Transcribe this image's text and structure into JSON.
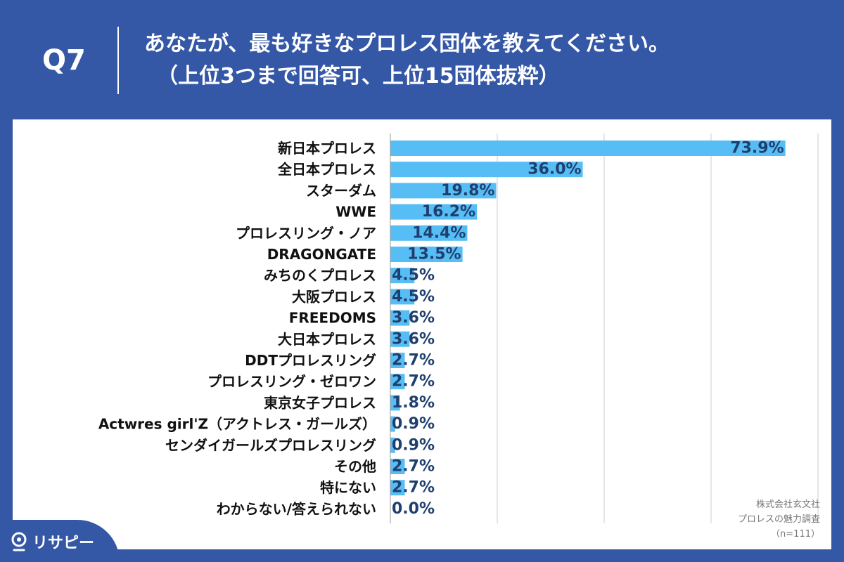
{
  "header": {
    "qnum": "Q7",
    "title_line1": "あなたが、最も好きなプロレス団体を教えてください。",
    "title_line2": "（上位3つまで回答可、上位15団体抜粋）"
  },
  "credit": {
    "line1": "株式会社玄文社",
    "line2": "プロレスの魅力調査",
    "line3": "（n=111）"
  },
  "brand": {
    "name": "リサピー",
    "icon": "pin-icon"
  },
  "colors": {
    "background": "#3457a6",
    "bar": "#56bdf5",
    "label": "#1f3f6e",
    "text": "#111111",
    "grid": "#cccccc"
  },
  "chart_data": {
    "type": "bar",
    "orientation": "horizontal",
    "categories": [
      "新日本プロレス",
      "全日本プロレス",
      "スターダム",
      "WWE",
      "プロレスリング・ノア",
      "DRAGONGATE",
      "みちのくプロレス",
      "大阪プロレス",
      "FREEDOMS",
      "大日本プロレス",
      "DDTプロレスリング",
      "プロレスリング・ゼロワン",
      "東京女子プロレス",
      "Actwres girl'Z（アクトレス・ガールズ）",
      "センダイガールズプロレスリング",
      "その他",
      "特にない",
      "わからない/答えられない"
    ],
    "values": [
      73.9,
      36.0,
      19.8,
      16.2,
      14.4,
      13.5,
      4.5,
      4.5,
      3.6,
      3.6,
      2.7,
      2.7,
      1.8,
      0.9,
      0.9,
      2.7,
      2.7,
      0.0
    ],
    "value_labels": [
      "73.9%",
      "36.0%",
      "19.8%",
      "16.2%",
      "14.4%",
      "13.5%",
      "4.5%",
      "4.5%",
      "3.6%",
      "3.6%",
      "2.7%",
      "2.7%",
      "1.8%",
      "0.9%",
      "0.9%",
      "2.7%",
      "2.7%",
      "0.0%"
    ],
    "xlim": [
      0,
      80
    ],
    "grid": true,
    "gridlines": [
      0,
      20,
      40,
      60,
      80
    ]
  }
}
